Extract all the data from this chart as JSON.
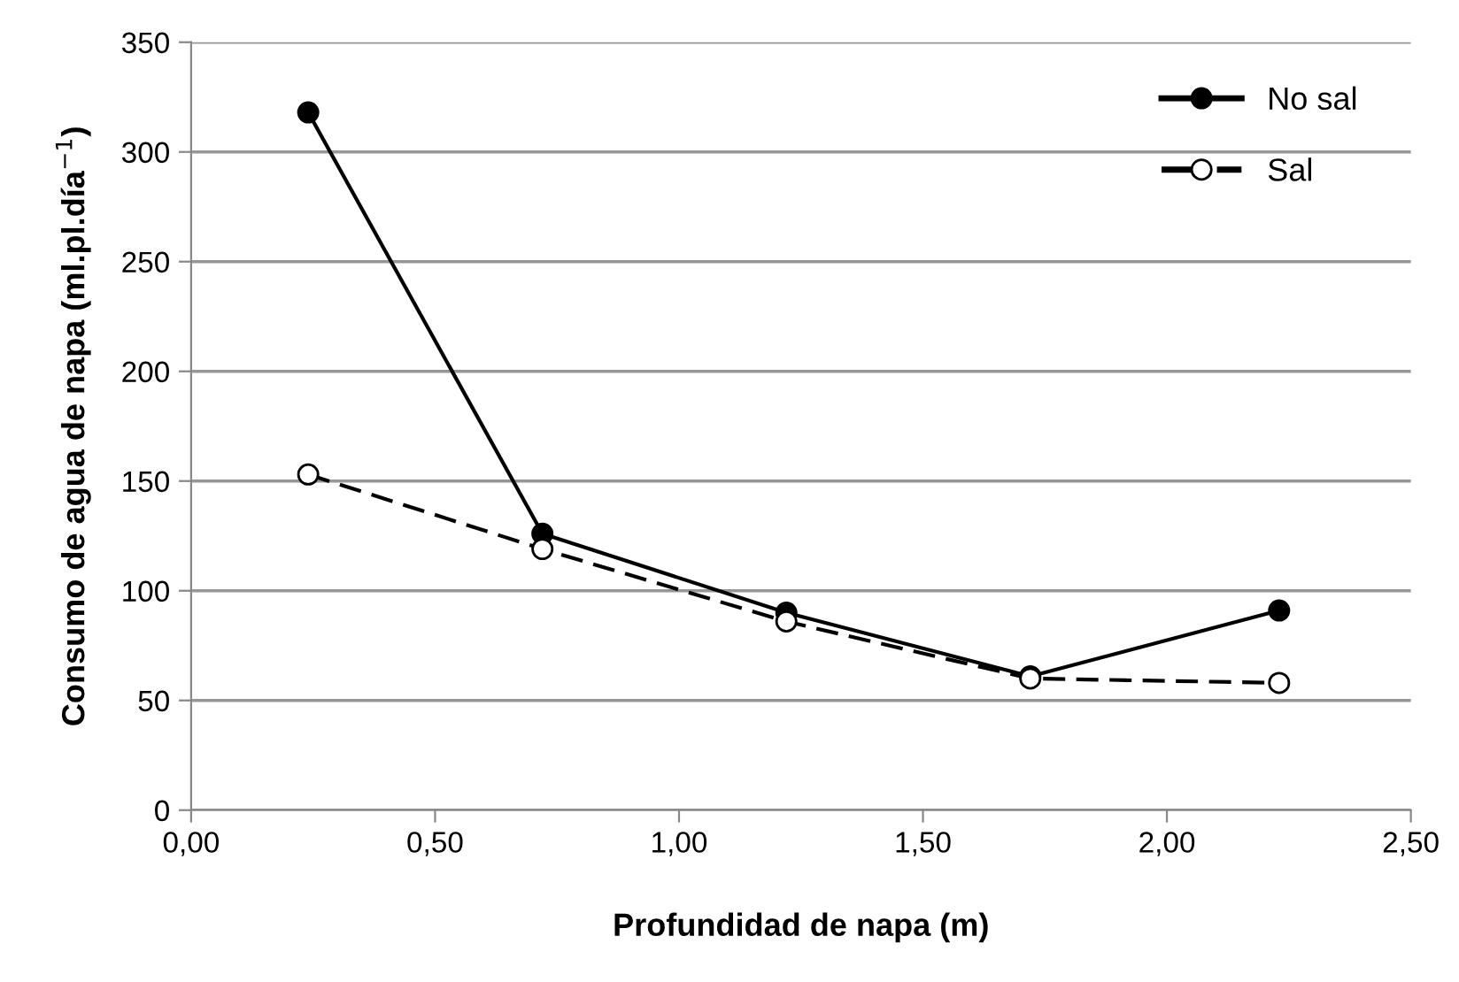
{
  "chart_data": {
    "type": "line",
    "xlabel": "Profundidad de napa (m)",
    "ylabel": "Consumo de agua de napa (ml.pl.día$^{−1}$)",
    "xlim": [
      0,
      2.5
    ],
    "xticks": [
      {
        "value": 0,
        "label": "0,00"
      },
      {
        "value": 0.5,
        "label": "0,50"
      },
      {
        "value": 1,
        "label": "1,00"
      },
      {
        "value": 1.5,
        "label": "1,50"
      },
      {
        "value": 2,
        "label": "2,00"
      },
      {
        "value": 2.5,
        "label": "2,50"
      }
    ],
    "ylim": [
      0,
      350
    ],
    "yticks": [
      0,
      50,
      100,
      150,
      200,
      250,
      300,
      350
    ],
    "grid": "y",
    "legend": "top right",
    "marker": "circle",
    "series": [
      {
        "name": "No sal",
        "color": "#000000",
        "line_style": "solid",
        "x": [
          0.24,
          0.72,
          1.22,
          1.72,
          2.23
        ],
        "values": [
          318,
          126,
          90,
          61,
          91
        ]
      },
      {
        "name": "Sal",
        "color": "#000000",
        "line_style": "dashed",
        "x": [
          0.24,
          0.72,
          1.22,
          1.72,
          2.23
        ],
        "values": [
          153,
          119,
          86,
          60,
          58
        ]
      }
    ]
  }
}
